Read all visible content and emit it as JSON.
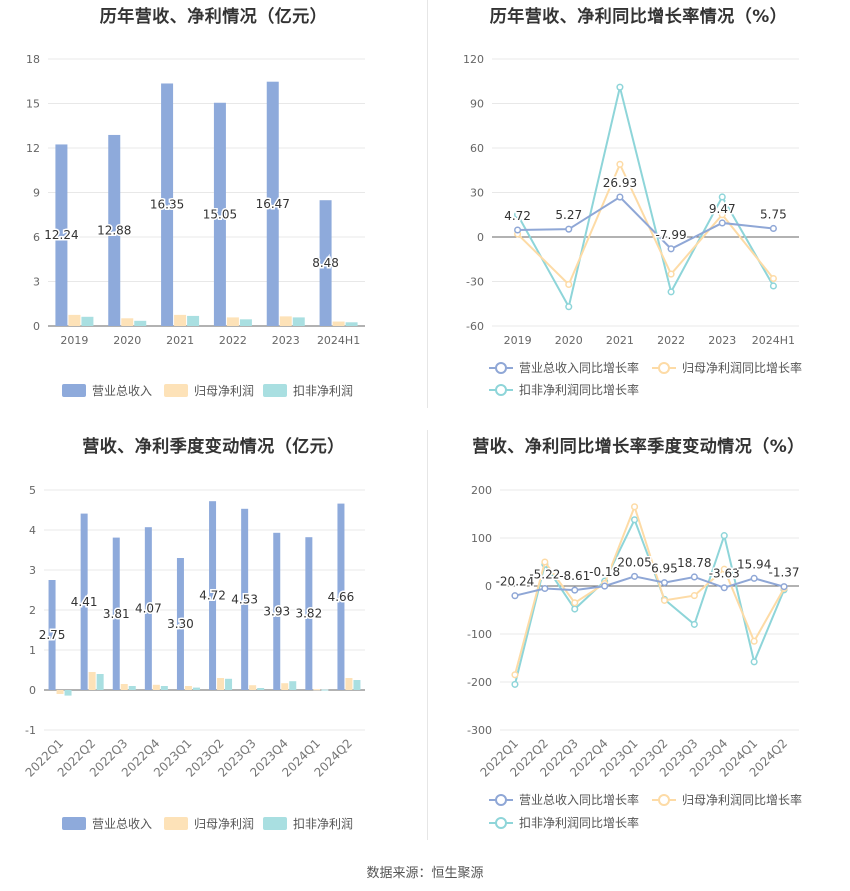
{
  "footer": {
    "source": "数据来源：恒生聚源"
  },
  "colors": {
    "revenue": "#8eaadb",
    "netprofit": "#fde2b8",
    "deducted": "#a9dfe1",
    "line_revenue": "#8fa7d6",
    "line_netprofit": "#fddba6",
    "line_deducted": "#8ed5d9"
  },
  "chart_data": [
    {
      "type": "bar",
      "title": "历年营收、净利情况（亿元）",
      "categories": [
        "2019",
        "2020",
        "2021",
        "2022",
        "2023",
        "2024H1"
      ],
      "ylim": [
        0,
        18
      ],
      "yticks": [
        0,
        3,
        6,
        9,
        12,
        15,
        18
      ],
      "series": [
        {
          "name": "营业总收入",
          "values": [
            12.24,
            12.88,
            16.35,
            15.05,
            16.47,
            8.48
          ],
          "labels": [
            "12.24",
            "12.88",
            "16.35",
            "15.05",
            "16.47",
            "8.48"
          ]
        },
        {
          "name": "归母净利润",
          "values": [
            0.75,
            0.52,
            0.75,
            0.58,
            0.65,
            0.3
          ]
        },
        {
          "name": "扣非净利润",
          "values": [
            0.62,
            0.35,
            0.68,
            0.45,
            0.58,
            0.25
          ]
        }
      ],
      "grid": true,
      "legend_position": "bottom"
    },
    {
      "type": "line",
      "title": "历年营收、净利同比增长率情况（%）",
      "categories": [
        "2019",
        "2020",
        "2021",
        "2022",
        "2023",
        "2024H1"
      ],
      "ylim": [
        -60,
        120
      ],
      "yticks": [
        -60,
        -30,
        0,
        30,
        60,
        90,
        120
      ],
      "series": [
        {
          "name": "营业总收入同比增长率",
          "values": [
            4.72,
            5.27,
            26.93,
            -7.99,
            9.47,
            5.75
          ],
          "labels": [
            "4.72",
            "5.27",
            "26.93",
            "-7.99",
            "9.47",
            "5.75"
          ]
        },
        {
          "name": "归母净利润同比增长率",
          "values": [
            2,
            -32,
            49,
            -25,
            15,
            -28
          ]
        },
        {
          "name": "扣非净利润同比增长率",
          "values": [
            15,
            -47,
            101,
            -37,
            27,
            -33
          ]
        }
      ],
      "grid": true,
      "legend_position": "bottom"
    },
    {
      "type": "bar",
      "title": "营收、净利季度变动情况（亿元）",
      "categories": [
        "2022Q1",
        "2022Q2",
        "2022Q3",
        "2022Q4",
        "2023Q1",
        "2023Q2",
        "2023Q3",
        "2023Q4",
        "2024Q1",
        "2024Q2"
      ],
      "ylim": [
        -1,
        5
      ],
      "yticks": [
        -1,
        0,
        1,
        2,
        3,
        4,
        5
      ],
      "series": [
        {
          "name": "营业总收入",
          "values": [
            2.75,
            4.41,
            3.81,
            4.07,
            3.3,
            4.72,
            4.53,
            3.93,
            3.82,
            4.66
          ],
          "labels": [
            "2.75",
            "4.41",
            "3.81",
            "4.07",
            "3.30",
            "4.72",
            "4.53",
            "3.93",
            "3.82",
            "4.66"
          ]
        },
        {
          "name": "归母净利润",
          "values": [
            -0.1,
            0.45,
            0.15,
            0.13,
            0.1,
            0.3,
            0.12,
            0.17,
            0.02,
            0.3
          ]
        },
        {
          "name": "扣非净利润",
          "values": [
            -0.14,
            0.4,
            0.1,
            0.1,
            0.06,
            0.28,
            0.05,
            0.22,
            0.01,
            0.25
          ]
        }
      ],
      "grid": true,
      "legend_position": "bottom"
    },
    {
      "type": "line",
      "title": "营收、净利同比增长率季度变动情况（%）",
      "categories": [
        "2022Q1",
        "2022Q2",
        "2022Q3",
        "2022Q4",
        "2023Q1",
        "2023Q2",
        "2023Q3",
        "2023Q4",
        "2024Q1",
        "2024Q2"
      ],
      "ylim": [
        -300,
        200
      ],
      "yticks": [
        -300,
        -200,
        -100,
        0,
        100,
        200
      ],
      "series": [
        {
          "name": "营业总收入同比增长率",
          "values": [
            -20.24,
            -5.22,
            -8.61,
            -0.18,
            20.05,
            6.95,
            18.78,
            -3.63,
            15.94,
            -1.37
          ],
          "labels": [
            "-20.24",
            "-5.22",
            "-8.61",
            "-0.18",
            "20.05",
            "6.95",
            "18.78",
            "-3.63",
            "15.94",
            "-1.37"
          ]
        },
        {
          "name": "归母净利润同比增长率",
          "values": [
            -185,
            50,
            -35,
            5,
            165,
            -30,
            -20,
            35,
            -115,
            -5
          ]
        },
        {
          "name": "扣非净利润同比增长率",
          "values": [
            -205,
            45,
            -48,
            10,
            138,
            -28,
            -80,
            105,
            -158,
            -8
          ]
        }
      ],
      "grid": true,
      "legend_position": "bottom"
    }
  ]
}
